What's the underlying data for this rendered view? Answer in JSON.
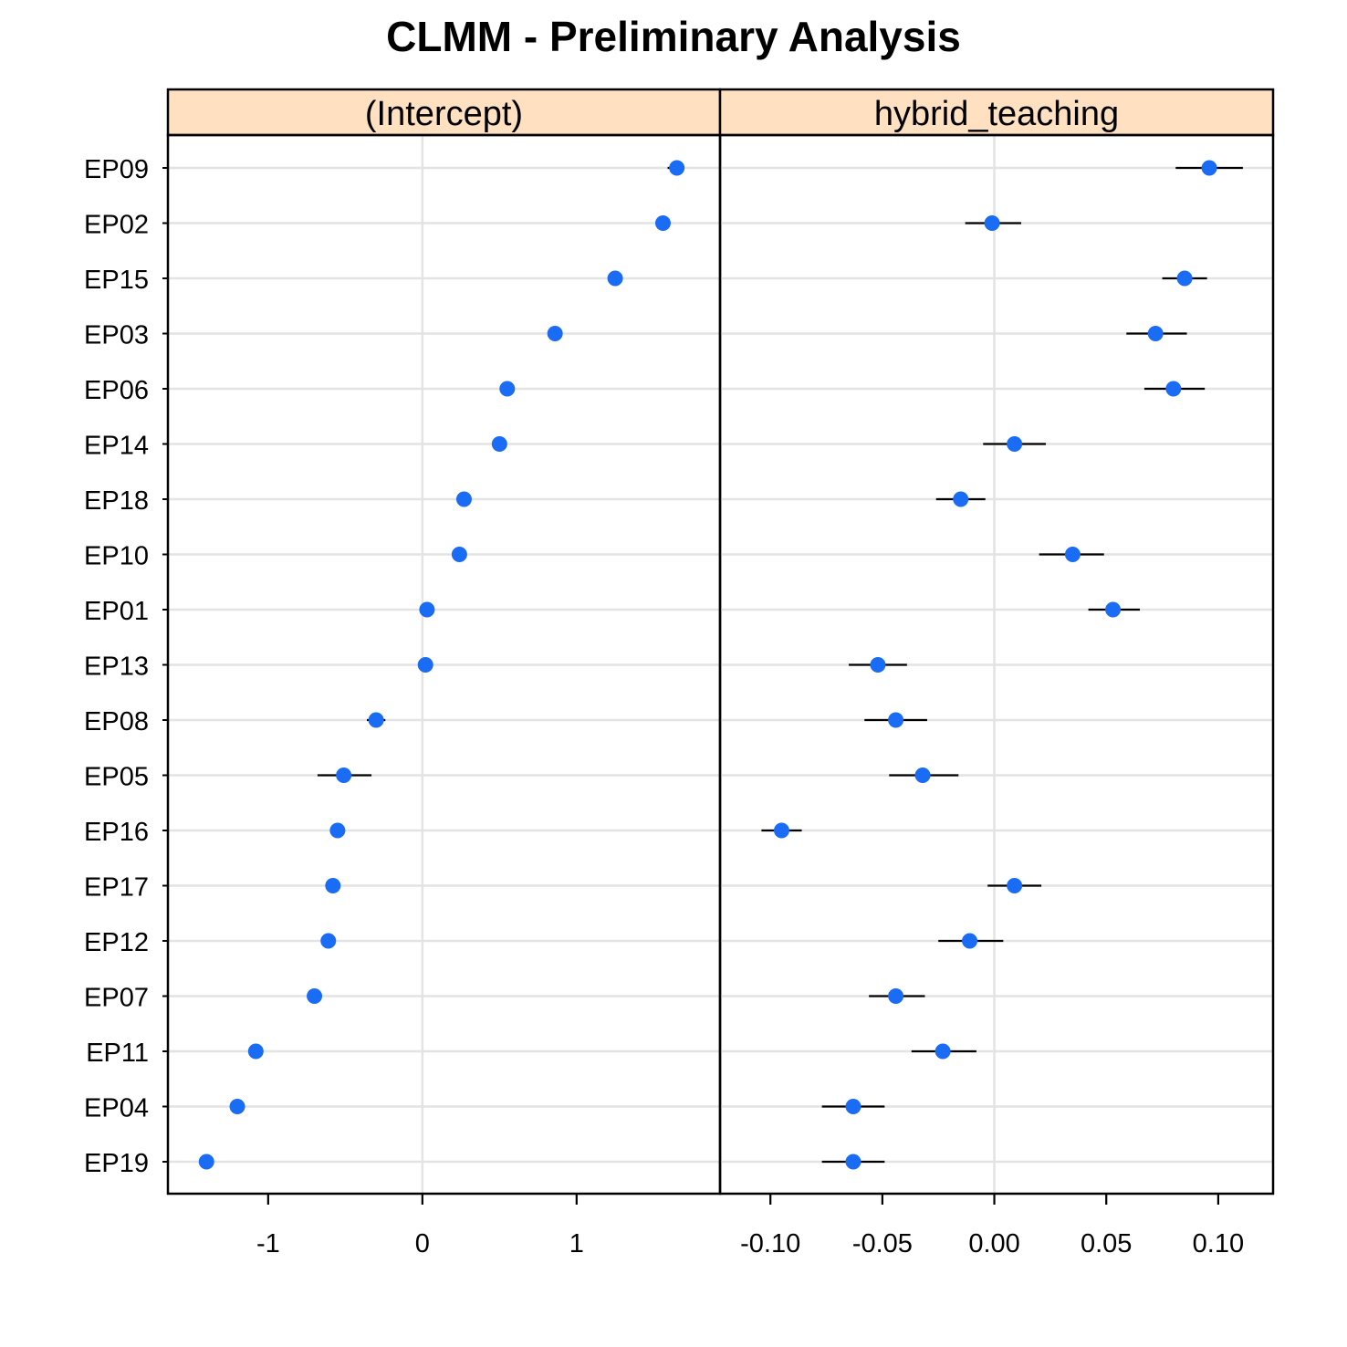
{
  "chart_data": {
    "type": "scatter",
    "title": "CLMM - Preliminary Analysis",
    "colors": {
      "point": "#1a6cf5",
      "error_bar": "#000000",
      "strip_bg": "#ffe0c0",
      "grid": "#e3e3e3",
      "frame": "#000000"
    },
    "categories": [
      "EP09",
      "EP02",
      "EP15",
      "EP03",
      "EP06",
      "EP14",
      "EP18",
      "EP10",
      "EP01",
      "EP13",
      "EP08",
      "EP05",
      "EP16",
      "EP17",
      "EP12",
      "EP07",
      "EP11",
      "EP04",
      "EP19"
    ],
    "panels": [
      {
        "name": "(Intercept)",
        "xlim": [
          -1.65,
          1.93
        ],
        "ticks": [
          {
            "value": -1,
            "label": "-1"
          },
          {
            "value": 0,
            "label": "0"
          },
          {
            "value": 1,
            "label": "1"
          }
        ],
        "values": [
          1.65,
          1.56,
          1.25,
          0.86,
          0.55,
          0.5,
          0.27,
          0.24,
          0.03,
          0.02,
          -0.3,
          -0.51,
          -0.55,
          -0.58,
          -0.61,
          -0.7,
          -1.08,
          -1.2,
          -1.4
        ],
        "err_low": [
          1.59,
          1.56,
          1.25,
          0.86,
          0.55,
          0.5,
          0.27,
          0.23,
          0.03,
          0.02,
          -0.36,
          -0.68,
          -0.55,
          -0.58,
          -0.61,
          -0.7,
          -1.08,
          -1.2,
          -1.4
        ],
        "err_high": [
          1.69,
          1.56,
          1.25,
          0.86,
          0.55,
          0.5,
          0.27,
          0.25,
          0.03,
          0.02,
          -0.24,
          -0.33,
          -0.55,
          -0.58,
          -0.61,
          -0.7,
          -1.08,
          -1.2,
          -1.4
        ]
      },
      {
        "name": "hybrid_teaching",
        "xlim": [
          -0.1225,
          0.1245
        ],
        "ticks": [
          {
            "value": -0.1,
            "label": "-0.10"
          },
          {
            "value": -0.05,
            "label": "-0.05"
          },
          {
            "value": 0.0,
            "label": "0.00"
          },
          {
            "value": 0.05,
            "label": "0.05"
          },
          {
            "value": 0.1,
            "label": "0.10"
          }
        ],
        "values": [
          0.096,
          -0.001,
          0.085,
          0.072,
          0.08,
          0.009,
          -0.015,
          0.035,
          0.053,
          -0.052,
          -0.044,
          -0.032,
          -0.095,
          0.009,
          -0.011,
          -0.044,
          -0.023,
          -0.063,
          -0.063
        ],
        "err_low": [
          0.081,
          -0.013,
          0.075,
          0.059,
          0.067,
          -0.005,
          -0.026,
          0.02,
          0.042,
          -0.065,
          -0.058,
          -0.047,
          -0.104,
          -0.003,
          -0.025,
          -0.056,
          -0.037,
          -0.077,
          -0.077
        ],
        "err_high": [
          0.111,
          0.012,
          0.095,
          0.086,
          0.094,
          0.023,
          -0.004,
          0.049,
          0.065,
          -0.039,
          -0.03,
          -0.016,
          -0.086,
          0.021,
          0.004,
          -0.031,
          -0.008,
          -0.049,
          -0.049
        ]
      }
    ]
  }
}
